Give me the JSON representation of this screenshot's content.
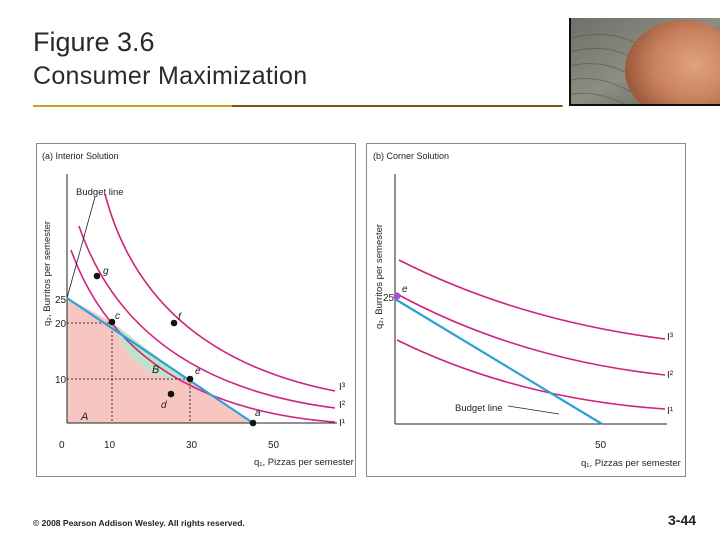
{
  "slide": {
    "title_line1": "Figure 3.6",
    "title_line2": "Consumer Maximization",
    "copyright": "© 2008 Pearson Addison Wesley. All rights reserved.",
    "page_number": "3-44"
  },
  "colors": {
    "accent_rule": "#c9a21b",
    "budget_line": "#2e9fd8",
    "indifference_curve": "#d0237f",
    "region_A": "#f7c6c0",
    "region_B": "#bfe3c8",
    "point": "#111111",
    "corner_point": "#b04ac6"
  },
  "panel_a": {
    "title": "(a) Interior Solution",
    "ylabel": "q₂, Burritos per semester",
    "xlabel": "q₁, Pizzas per semester",
    "budget_label": "Budget line",
    "xticks": [
      "0",
      "10",
      "30",
      "50"
    ],
    "yticks": [
      "25",
      "20",
      "10"
    ],
    "curve_labels": [
      "I³",
      "I²",
      "I¹"
    ],
    "region_labels": [
      "A",
      "B"
    ],
    "point_labels": [
      "g",
      "c",
      "f",
      "e",
      "d",
      "a"
    ]
  },
  "panel_b": {
    "title": "(b) Corner Solution",
    "ylabel": "q₂, Burritos per semester",
    "xlabel": "q₁, Pizzas per semester",
    "budget_label": "Budget line",
    "xticks": [
      "50"
    ],
    "yticks": [
      "25"
    ],
    "curve_labels": [
      "I³",
      "I²",
      "I¹"
    ],
    "point_labels": [
      "e"
    ]
  }
}
